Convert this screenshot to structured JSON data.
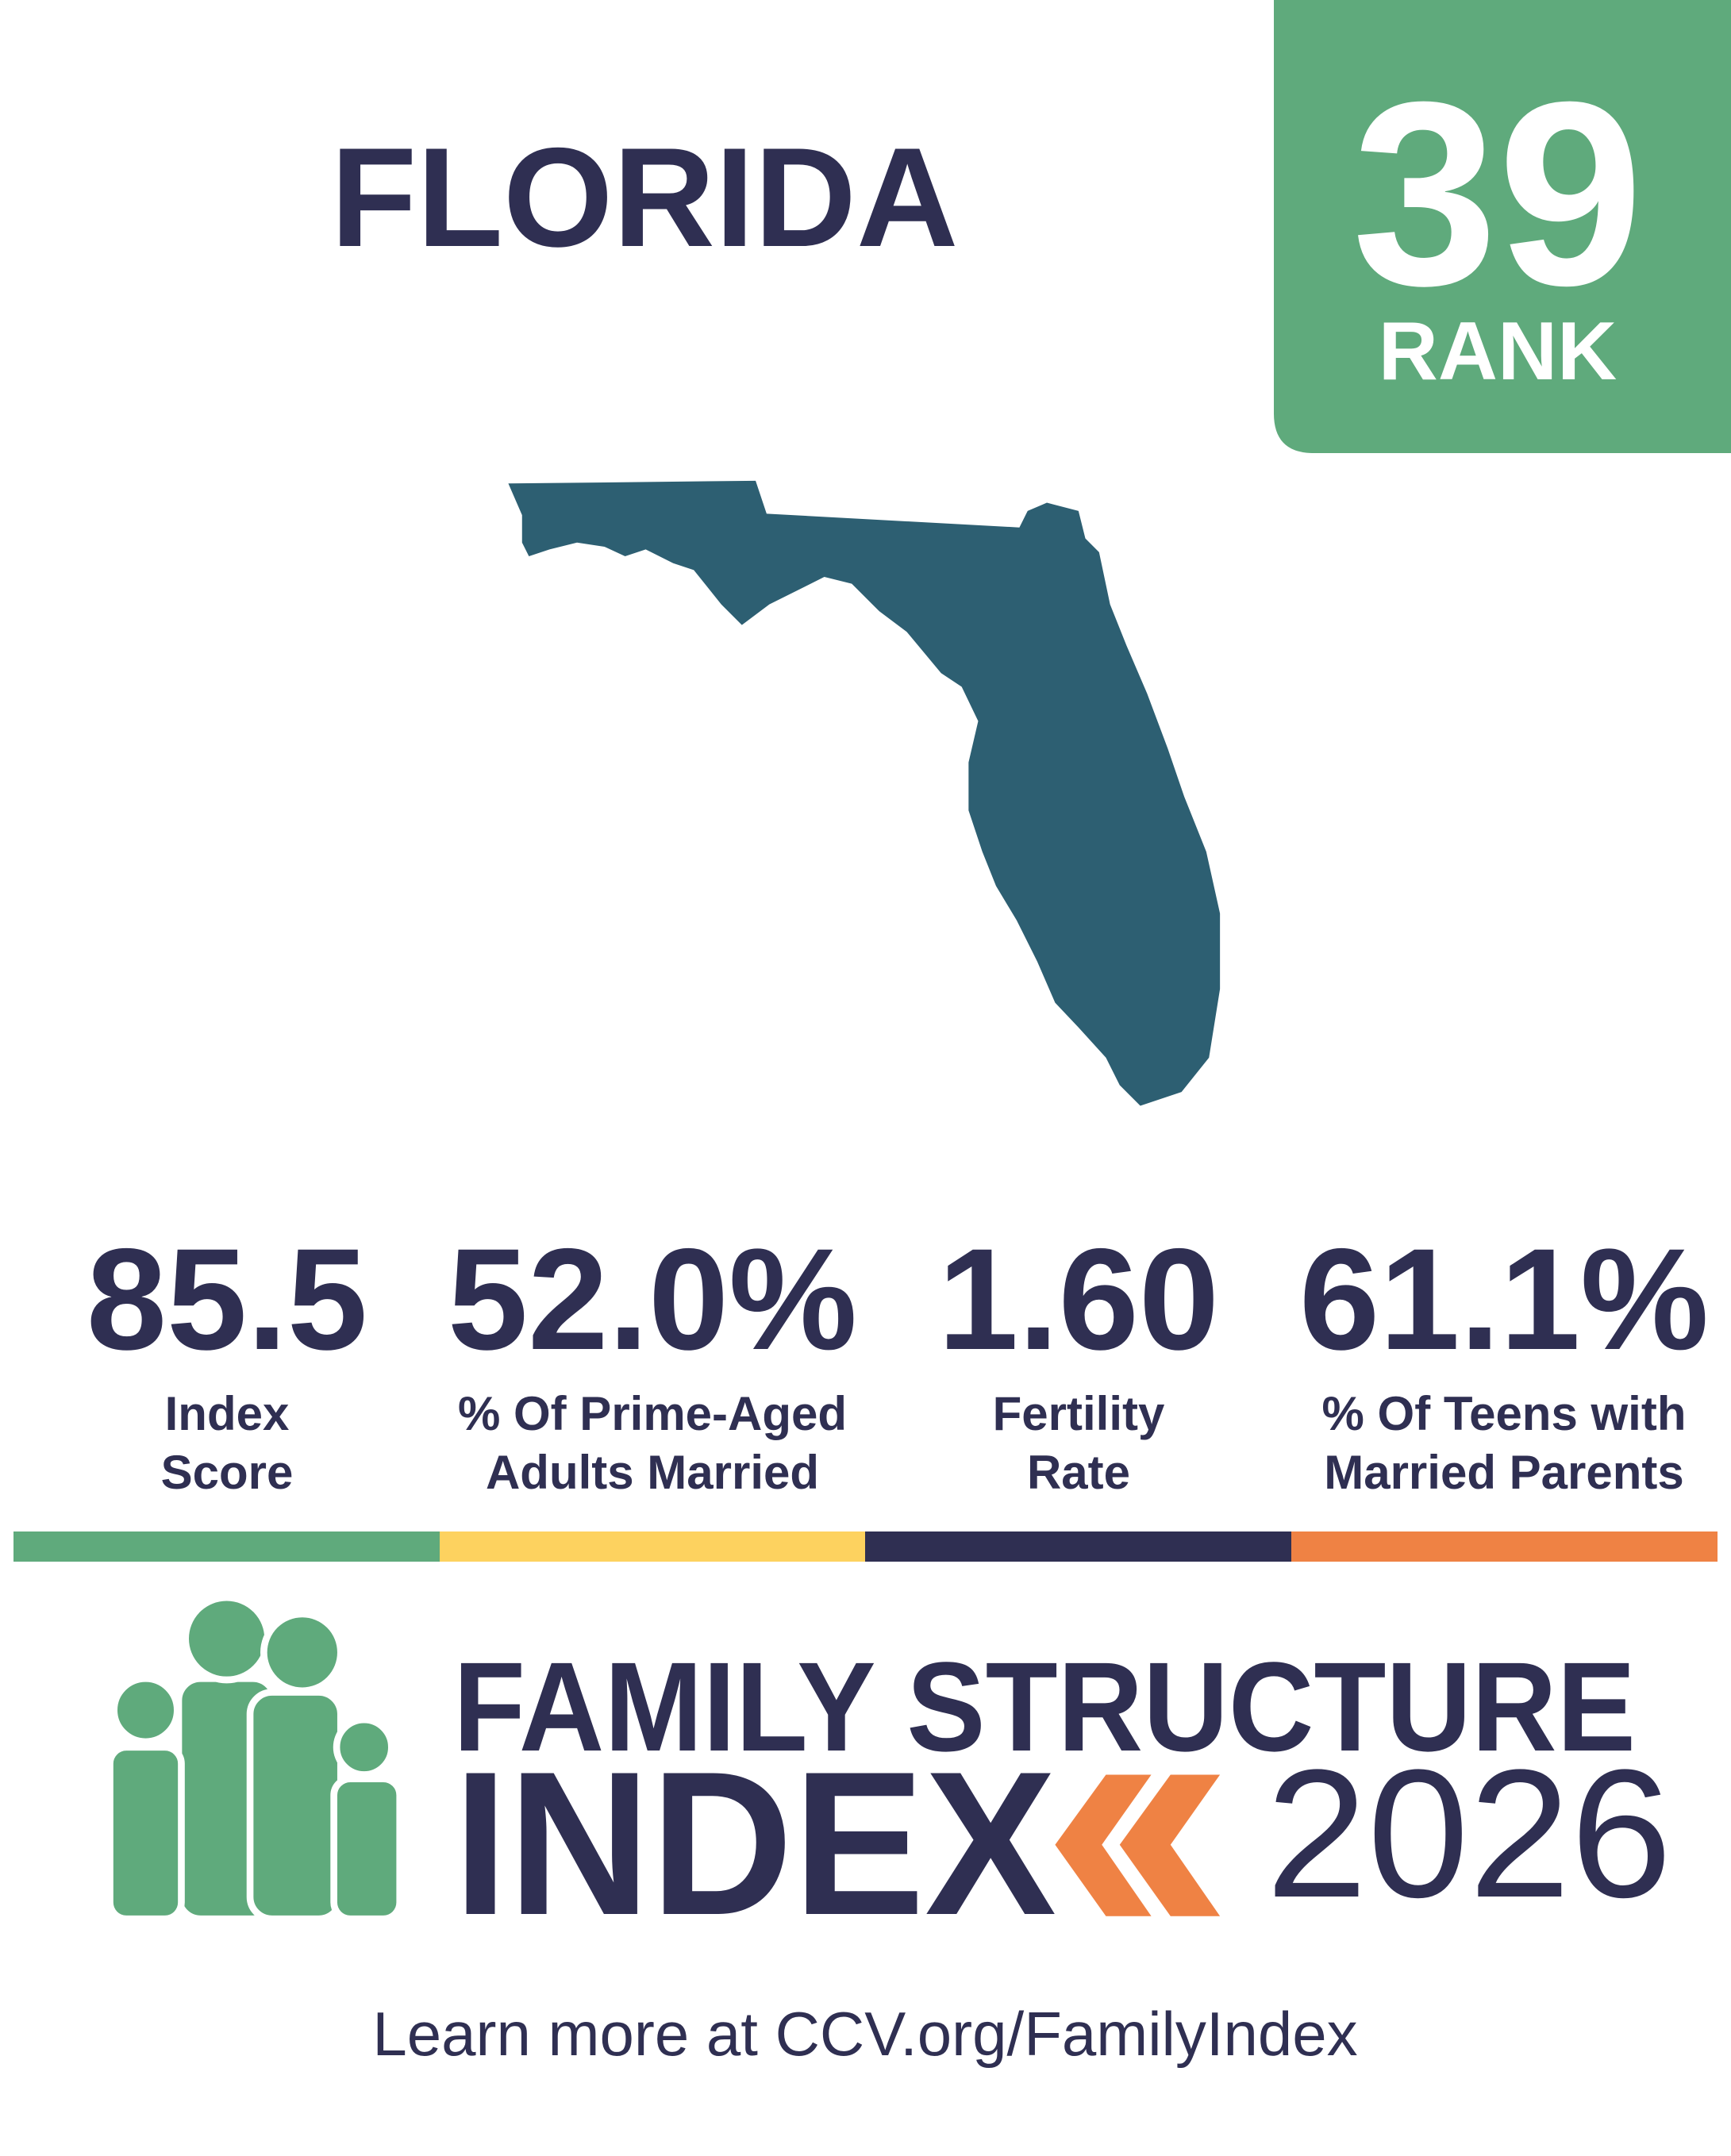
{
  "state": "FLORIDA",
  "rank": {
    "value": "39",
    "label": "RANK"
  },
  "stats": [
    {
      "value": "85.5",
      "label_lines": [
        "Index",
        "Score"
      ]
    },
    {
      "value": "52.0%",
      "label_lines": [
        "% Of Prime-Aged",
        "Adults Married"
      ]
    },
    {
      "value": "1.60",
      "label_lines": [
        "Fertility",
        "Rate"
      ]
    },
    {
      "value": "61.1%",
      "label_lines": [
        "% Of Teens with",
        "Married Parents"
      ]
    }
  ],
  "logo": {
    "line1": "FAMILY STRUCTURE",
    "line2": "INDEX",
    "year": "2026"
  },
  "footer": "Learn more at CCV.org/FamilyIndex"
}
